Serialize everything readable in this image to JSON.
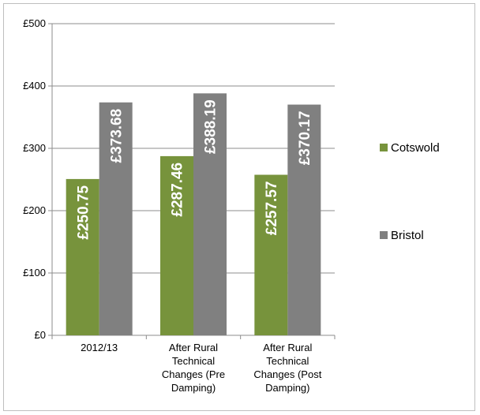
{
  "chart_data": {
    "type": "bar",
    "title": "",
    "xlabel": "",
    "ylabel": "",
    "categories": [
      [
        "2012/13"
      ],
      [
        "After Rural",
        "Technical",
        "Changes (Pre",
        "Damping)"
      ],
      [
        "After Rural",
        "Technical",
        "Changes (Post",
        "Damping)"
      ]
    ],
    "series": [
      {
        "name": "Cotswold",
        "color": "#77933c",
        "values": [
          250.75,
          287.46,
          257.57
        ],
        "labels": [
          "£250.75",
          "£287.46",
          "£257.57"
        ]
      },
      {
        "name": "Bristol",
        "color": "#808080",
        "values": [
          373.68,
          388.19,
          370.17
        ],
        "labels": [
          "£373.68",
          "£388.19",
          "£370.17"
        ]
      }
    ],
    "ylim": [
      0,
      500
    ],
    "yticks": [
      0,
      100,
      200,
      300,
      400,
      500
    ],
    "ytick_labels": [
      "£0",
      "£100",
      "£200",
      "£300",
      "£400",
      "£500"
    ],
    "grid": true,
    "legend": "right"
  }
}
